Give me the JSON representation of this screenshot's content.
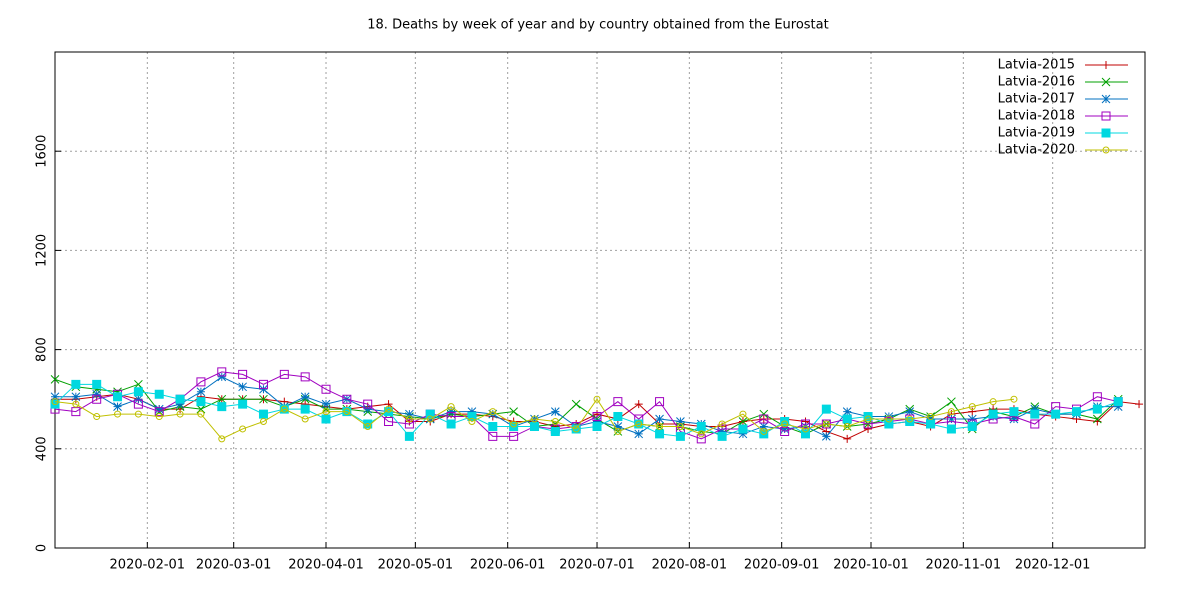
{
  "chart_data": {
    "type": "line",
    "title": "18. Deaths by week of year and by country obtained from the Eurostat",
    "x": [
      "2020-01-01",
      "2020-01-08",
      "2020-01-15",
      "2020-01-22",
      "2020-01-29",
      "2020-02-05",
      "2020-02-12",
      "2020-02-19",
      "2020-02-26",
      "2020-03-04",
      "2020-03-11",
      "2020-03-18",
      "2020-03-25",
      "2020-04-01",
      "2020-04-08",
      "2020-04-15",
      "2020-04-22",
      "2020-04-29",
      "2020-05-06",
      "2020-05-13",
      "2020-05-20",
      "2020-05-27",
      "2020-06-03",
      "2020-06-10",
      "2020-06-17",
      "2020-06-24",
      "2020-07-01",
      "2020-07-08",
      "2020-07-15",
      "2020-07-22",
      "2020-07-29",
      "2020-08-05",
      "2020-08-12",
      "2020-08-19",
      "2020-08-26",
      "2020-09-02",
      "2020-09-09",
      "2020-09-16",
      "2020-09-23",
      "2020-09-30",
      "2020-10-07",
      "2020-10-14",
      "2020-10-21",
      "2020-10-28",
      "2020-11-04",
      "2020-11-11",
      "2020-11-18",
      "2020-11-25",
      "2020-12-02",
      "2020-12-09",
      "2020-12-16",
      "2020-12-23",
      "2020-12-30"
    ],
    "xlim": [
      "2020-01-01",
      "2021-01-01"
    ],
    "xticks": [
      "2020-02-01",
      "2020-03-01",
      "2020-04-01",
      "2020-05-01",
      "2020-06-01",
      "2020-07-01",
      "2020-08-01",
      "2020-09-01",
      "2020-10-01",
      "2020-11-01",
      "2020-12-01"
    ],
    "ylim": [
      0,
      2000
    ],
    "yticks": [
      0,
      400,
      800,
      1200,
      1600
    ],
    "grid": true,
    "legend": "top-right",
    "series": [
      {
        "name": "Latvia-2015",
        "color": "#c00000",
        "marker": "plus",
        "values": [
          600,
          600,
          610,
          620,
          600,
          560,
          560,
          610,
          600,
          600,
          600,
          590,
          580,
          570,
          560,
          570,
          580,
          510,
          510,
          540,
          540,
          530,
          510,
          510,
          490,
          500,
          540,
          520,
          580,
          500,
          500,
          490,
          490,
          510,
          520,
          520,
          510,
          470,
          440,
          480,
          500,
          510,
          490,
          540,
          550,
          560,
          560,
          540,
          530,
          520,
          510,
          590,
          580
        ]
      },
      {
        "name": "Latvia-2016",
        "color": "#00a000",
        "marker": "cross",
        "values": [
          680,
          650,
          640,
          630,
          660,
          550,
          570,
          560,
          600,
          600,
          600,
          570,
          600,
          560,
          560,
          550,
          540,
          530,
          520,
          540,
          530,
          540,
          550,
          490,
          500,
          580,
          520,
          470,
          500,
          490,
          490,
          470,
          460,
          510,
          540,
          490,
          460,
          500,
          490,
          500,
          520,
          560,
          530,
          590,
          480,
          550,
          530,
          570,
          540,
          540,
          520,
          600,
          null
        ]
      },
      {
        "name": "Latvia-2017",
        "color": "#0070c0",
        "marker": "star",
        "values": [
          610,
          610,
          620,
          570,
          600,
          560,
          580,
          630,
          690,
          650,
          640,
          570,
          610,
          580,
          600,
          560,
          550,
          540,
          520,
          550,
          550,
          540,
          490,
          520,
          550,
          490,
          510,
          490,
          460,
          520,
          510,
          500,
          470,
          460,
          490,
          480,
          490,
          450,
          550,
          530,
          530,
          550,
          520,
          520,
          520,
          530,
          520,
          560,
          540,
          540,
          570,
          570,
          null
        ]
      },
      {
        "name": "Latvia-2018",
        "color": "#a000c0",
        "marker": "square-open",
        "values": [
          560,
          550,
          600,
          620,
          580,
          550,
          600,
          670,
          710,
          700,
          660,
          700,
          690,
          640,
          600,
          580,
          510,
          500,
          540,
          530,
          530,
          450,
          450,
          490,
          480,
          490,
          530,
          590,
          520,
          590,
          470,
          440,
          480,
          480,
          520,
          470,
          500,
          500,
          520,
          500,
          510,
          520,
          500,
          510,
          500,
          520,
          530,
          500,
          570,
          560,
          610,
          590,
          null
        ]
      },
      {
        "name": "Latvia-2019",
        "color": "#00d8e0",
        "marker": "square-filled",
        "values": [
          580,
          660,
          660,
          610,
          630,
          620,
          600,
          590,
          570,
          580,
          540,
          560,
          560,
          520,
          550,
          500,
          550,
          450,
          540,
          500,
          530,
          490,
          490,
          490,
          470,
          480,
          490,
          530,
          500,
          460,
          450,
          490,
          450,
          480,
          460,
          510,
          460,
          560,
          520,
          530,
          500,
          510,
          500,
          480,
          490,
          540,
          550,
          540,
          540,
          550,
          560,
          590,
          null
        ]
      },
      {
        "name": "Latvia-2020",
        "color": "#c0c000",
        "marker": "circle-open",
        "values": [
          590,
          580,
          530,
          540,
          540,
          530,
          540,
          540,
          440,
          480,
          510,
          560,
          520,
          550,
          550,
          490,
          560,
          520,
          520,
          570,
          510,
          550,
          500,
          520,
          510,
          480,
          600,
          470,
          500,
          490,
          490,
          460,
          500,
          540,
          470,
          500,
          480,
          500,
          490,
          520,
          520,
          520,
          530,
          550,
          570,
          590,
          600,
          null,
          null,
          null,
          null,
          null,
          null
        ]
      }
    ]
  }
}
